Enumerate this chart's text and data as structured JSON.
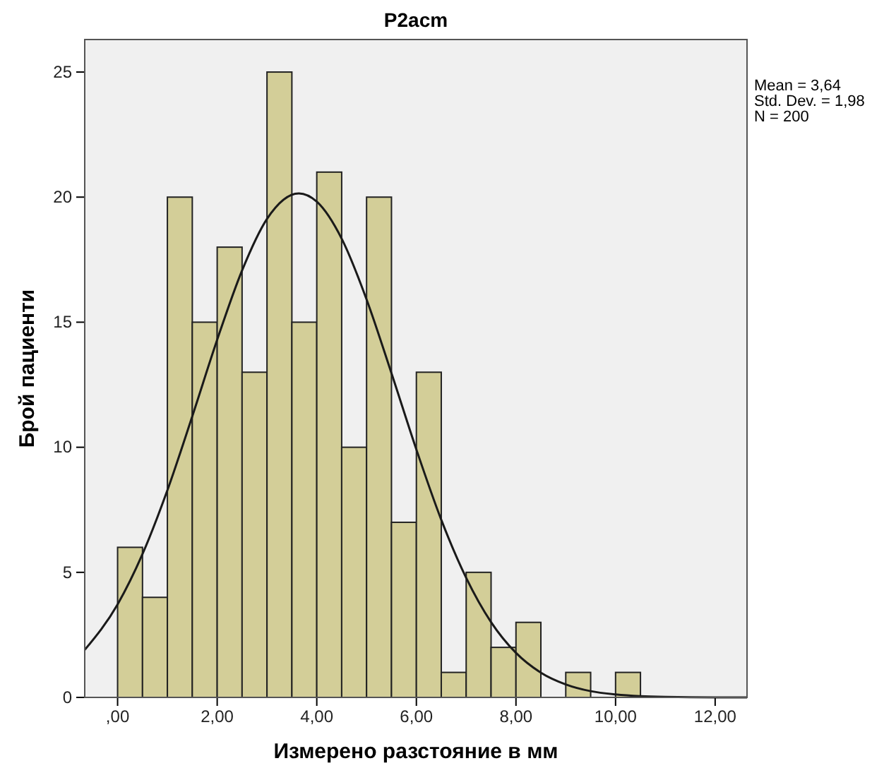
{
  "chart_data": {
    "type": "histogram",
    "title": "P2acm",
    "xlabel": "Измерено разстояние в мм",
    "ylabel": "Брой пациенти",
    "annotations": [
      "Mean = 3,64",
      "Std. Dev. = 1,98",
      "N = 200"
    ],
    "xlim": [
      -0.66,
      12.64
    ],
    "xticks": [
      {
        "value": 0,
        "label": ",00"
      },
      {
        "value": 2,
        "label": "2,00"
      },
      {
        "value": 4,
        "label": "4,00"
      },
      {
        "value": 6,
        "label": "6,00"
      },
      {
        "value": 8,
        "label": "8,00"
      },
      {
        "value": 10,
        "label": "10,00"
      },
      {
        "value": 12,
        "label": "12,00"
      }
    ],
    "ylim": [
      0,
      26.3
    ],
    "yticks": [
      0,
      5,
      10,
      15,
      20,
      25
    ],
    "grid": false,
    "series": [
      {
        "color": "#d3ce98",
        "bins": [
          0,
          0.5,
          1,
          1.5,
          2,
          2.5,
          3,
          3.5,
          4,
          4.5,
          5,
          5.5,
          6,
          6.5,
          7,
          7.5,
          8,
          8.5,
          9,
          9.5,
          10,
          10.5
        ],
        "values": [
          6,
          4,
          20,
          15,
          18,
          13,
          25,
          15,
          21,
          10,
          20,
          7,
          13,
          1,
          5,
          2,
          3,
          0,
          1,
          0,
          1
        ]
      },
      {
        "type": "line",
        "color": "#1a1a1a",
        "x": [
          -0.66,
          0,
          0.5,
          1,
          1.5,
          2,
          2.5,
          3,
          3.64,
          4,
          4.5,
          5,
          5.5,
          6,
          6.5,
          7,
          7.5,
          8,
          8.5,
          9,
          9.5,
          10,
          10.5,
          11,
          12,
          12.64
        ],
        "values": [
          1.9,
          3.72,
          5.73,
          8.28,
          11.24,
          14.3,
          17.07,
          19.13,
          20.15,
          19.82,
          18.34,
          15.91,
          12.96,
          9.91,
          7.1,
          4.78,
          3.01,
          1.78,
          0.99,
          0.52,
          0.25,
          0.12,
          0.05,
          0.02,
          0,
          0
        ]
      }
    ]
  }
}
